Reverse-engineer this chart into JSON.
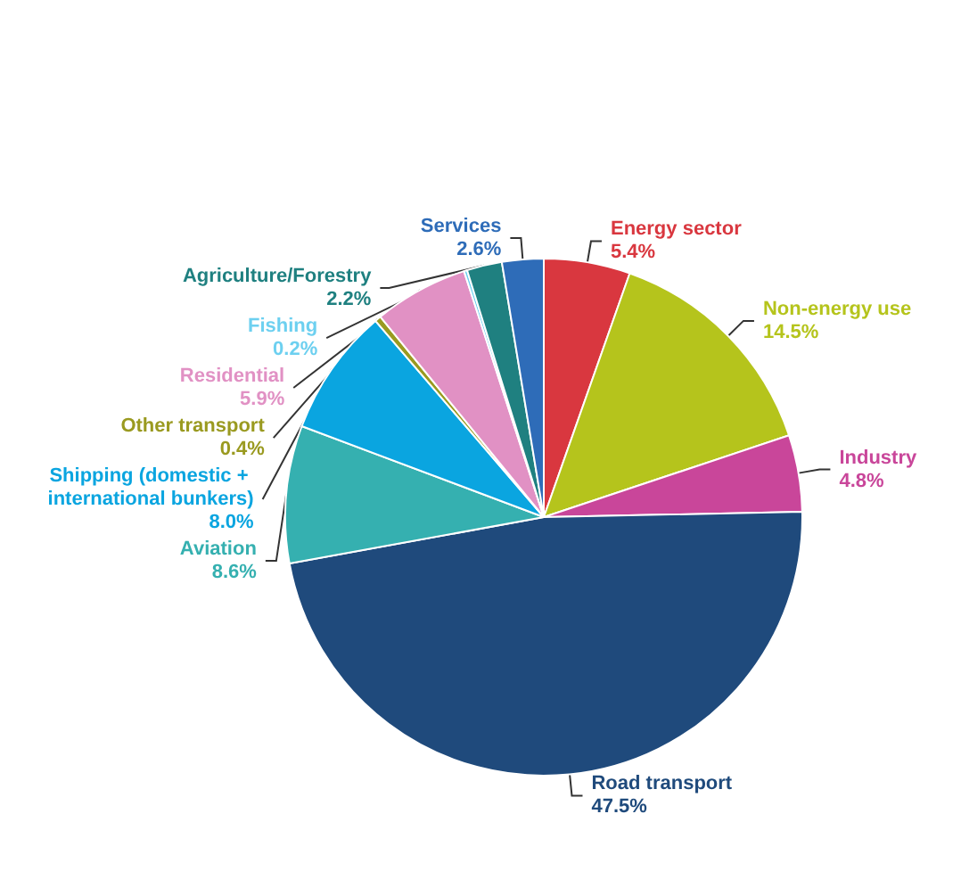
{
  "chart_data": {
    "type": "pie",
    "categories": [
      "Energy sector",
      "Non-energy use",
      "Industry",
      "Road transport",
      "Aviation",
      "Shipping (domestic + international bunkers)",
      "Other transport",
      "Residential",
      "Fishing",
      "Agriculture/Forestry",
      "Services"
    ],
    "values": [
      5.4,
      14.5,
      4.8,
      47.5,
      8.6,
      8.0,
      0.4,
      5.9,
      0.2,
      2.2,
      2.6
    ],
    "value_labels": [
      "5.4%",
      "14.5%",
      "4.8%",
      "47.5%",
      "8.6%",
      "8.0%",
      "0.4%",
      "5.9%",
      "0.2%",
      "2.2%",
      "2.6%"
    ],
    "colors": [
      "#d9373f",
      "#b5c41c",
      "#c9469a",
      "#1f4a7c",
      "#35b0b0",
      "#0aa5e0",
      "#9a9a20",
      "#e191c4",
      "#6dd0f0",
      "#1f8080",
      "#2e6cb8"
    ],
    "legend": false
  }
}
